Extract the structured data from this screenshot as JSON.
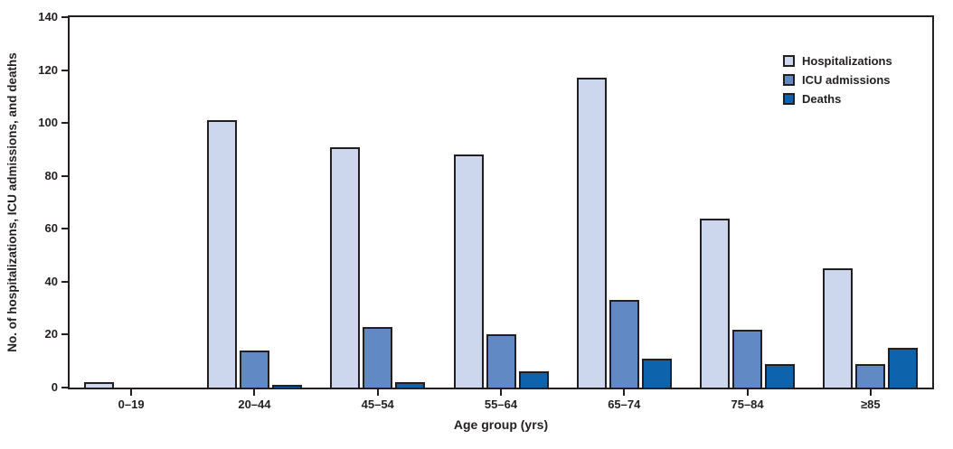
{
  "chart_data": {
    "type": "bar",
    "title": "",
    "categories": [
      "0–19",
      "20–44",
      "45–54",
      "55–64",
      "65–74",
      "75–84",
      "≥85"
    ],
    "series": [
      {
        "name": "Hospitalizations",
        "color": "#ccd6ec",
        "values": [
          2,
          101,
          91,
          88,
          117,
          64,
          45
        ]
      },
      {
        "name": "ICU admissions",
        "color": "#6189c4",
        "values": [
          0,
          14,
          23,
          20,
          33,
          22,
          9
        ]
      },
      {
        "name": "Deaths",
        "color": "#0e63ad",
        "values": [
          0,
          1,
          2,
          6,
          11,
          9,
          15
        ]
      }
    ],
    "xlabel": "Age group (yrs)",
    "ylabel": "No. of hospitalizations, ICU admissions, and deaths",
    "ylim": [
      0,
      140
    ],
    "yticks": [
      0,
      20,
      40,
      60,
      80,
      100,
      120,
      140
    ],
    "grid": false,
    "legend_position": "top-right-inside",
    "frame": "full-box",
    "bar_border_color": "#231f20",
    "text_color": "#231f20"
  }
}
